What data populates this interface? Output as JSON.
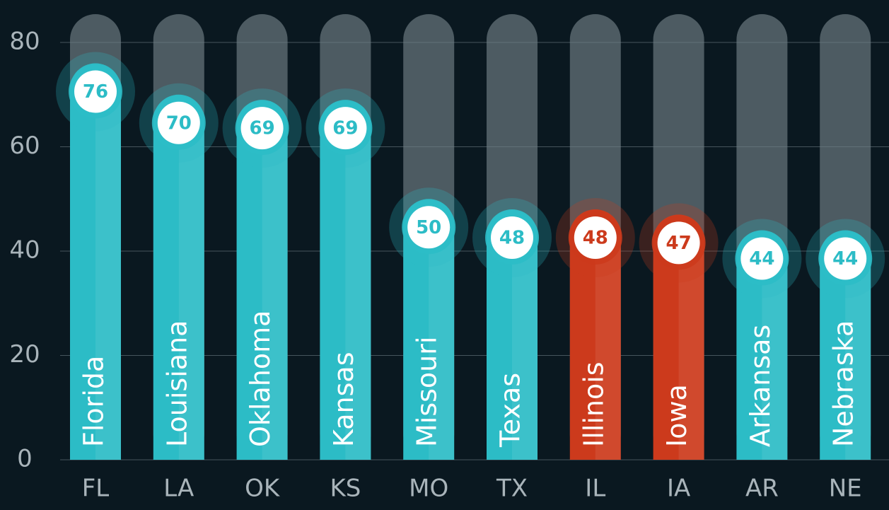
{
  "chart_data": {
    "type": "bar",
    "categories": [
      "FL",
      "LA",
      "OK",
      "KS",
      "MO",
      "TX",
      "IL",
      "IA",
      "AR",
      "NE"
    ],
    "names": [
      "Florida",
      "Louisiana",
      "Oklahoma",
      "Kansas",
      "Missouri",
      "Texas",
      "Illinois",
      "Iowa",
      "Arkansas",
      "Nebraska"
    ],
    "values": [
      76,
      70,
      69,
      69,
      50,
      48,
      48,
      47,
      44,
      44
    ],
    "colors": [
      "#2cbcc6",
      "#2cbcc6",
      "#2cbcc6",
      "#2cbcc6",
      "#2cbcc6",
      "#2cbcc6",
      "#cc3a1c",
      "#cc3a1c",
      "#2cbcc6",
      "#2cbcc6"
    ],
    "ylim": [
      0,
      80
    ],
    "yticks": [
      0,
      20,
      40,
      60,
      80
    ],
    "grid": true
  }
}
